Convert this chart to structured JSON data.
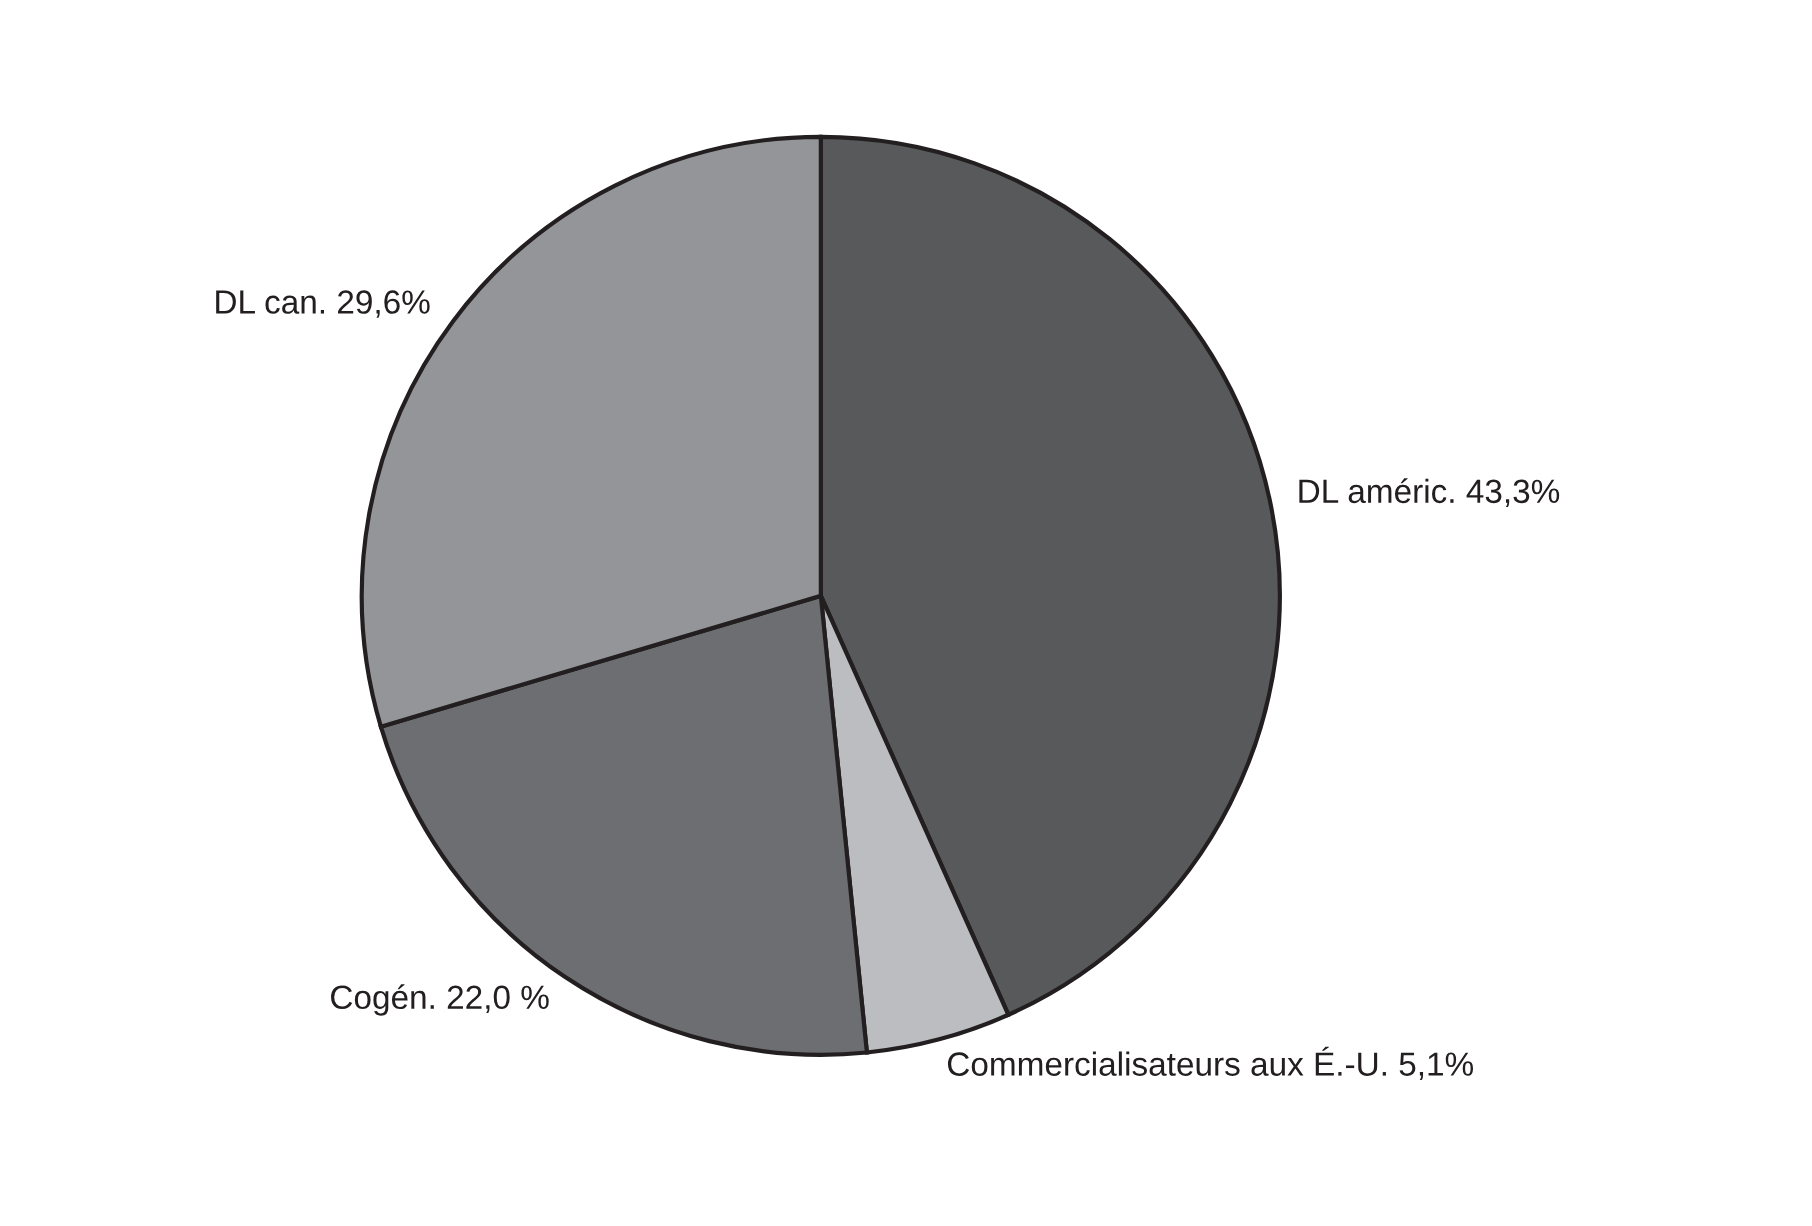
{
  "chart_data": {
    "type": "pie",
    "categories": [
      "DL améric.",
      "Commercialisateurs aux É.-U.",
      "Cogén.",
      "DL can."
    ],
    "values": [
      43.3,
      5.1,
      22.0,
      29.6
    ],
    "value_labels": [
      "43,3%",
      "5,1%",
      "22,0 %",
      "29,6%"
    ],
    "colors": [
      "#58595b",
      "#bcbdc0",
      "#6d6e71",
      "#939598"
    ],
    "legend": false
  }
}
